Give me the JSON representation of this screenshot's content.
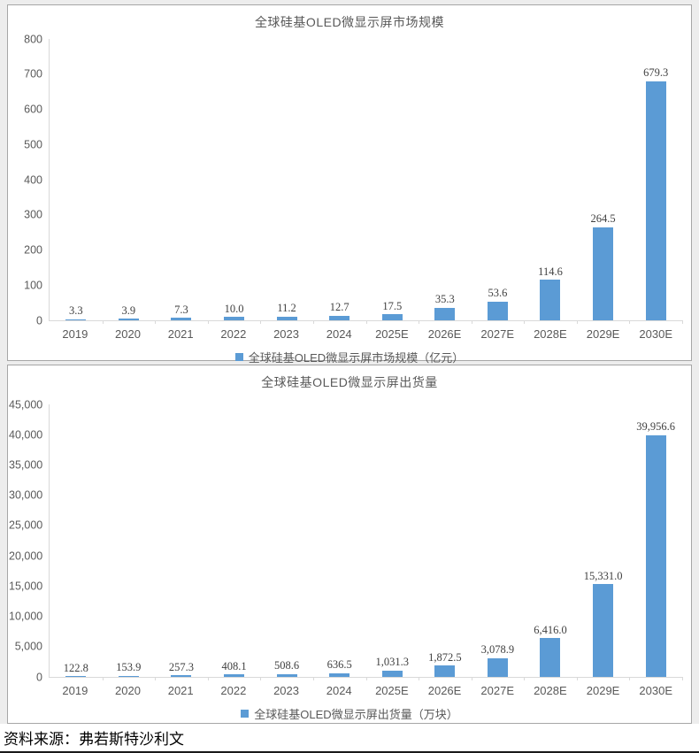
{
  "source_note": "资料来源：弗若斯特沙利文",
  "colors": {
    "bar": "#5b9bd5",
    "axis_line": "#d9d9d9",
    "axis_text": "#595959",
    "value_label_text": "#404040",
    "panel_border": "#a6a6a6",
    "page_background": "#ededed"
  },
  "chart_data": [
    {
      "type": "bar",
      "title": "全球硅基OLED微显示屏市场规模",
      "legend": "全球硅基OLED微显示屏市场规模（亿元）",
      "categories": [
        "2019",
        "2020",
        "2021",
        "2022",
        "2023",
        "2024",
        "2025E",
        "2026E",
        "2027E",
        "2028E",
        "2029E",
        "2030E"
      ],
      "values": [
        3.3,
        3.9,
        7.3,
        10.0,
        11.2,
        12.7,
        17.5,
        35.3,
        53.6,
        114.6,
        264.5,
        679.3
      ],
      "value_labels": [
        "3.3",
        "3.9",
        "7.3",
        "10.0",
        "11.2",
        "12.7",
        "17.5",
        "35.3",
        "53.6",
        "114.6",
        "264.5",
        "679.3"
      ],
      "xlabel": "",
      "ylabel": "",
      "ylim": [
        0,
        800
      ],
      "yticks": [
        "0",
        "100",
        "200",
        "300",
        "400",
        "500",
        "600",
        "700",
        "800"
      ],
      "grid": false,
      "legend_position": "bottom"
    },
    {
      "type": "bar",
      "title": "全球硅基OLED微显示屏出货量",
      "legend": "全球硅基OLED微显示屏出货量（万块）",
      "categories": [
        "2019",
        "2020",
        "2021",
        "2022",
        "2023",
        "2024",
        "2025E",
        "2026E",
        "2027E",
        "2028E",
        "2029E",
        "2030E"
      ],
      "values": [
        122.8,
        153.9,
        257.3,
        408.1,
        508.6,
        636.5,
        1031.3,
        1872.5,
        3078.9,
        6416.0,
        15331.0,
        39956.6
      ],
      "value_labels": [
        "122.8",
        "153.9",
        "257.3",
        "408.1",
        "508.6",
        "636.5",
        "1,031.3",
        "1,872.5",
        "3,078.9",
        "6,416.0",
        "15,331.0",
        "39,956.6"
      ],
      "xlabel": "",
      "ylabel": "",
      "ylim": [
        0,
        45000
      ],
      "yticks": [
        "0",
        "5,000",
        "10,000",
        "15,000",
        "20,000",
        "25,000",
        "30,000",
        "35,000",
        "40,000",
        "45,000"
      ],
      "grid": false,
      "legend_position": "bottom"
    }
  ]
}
